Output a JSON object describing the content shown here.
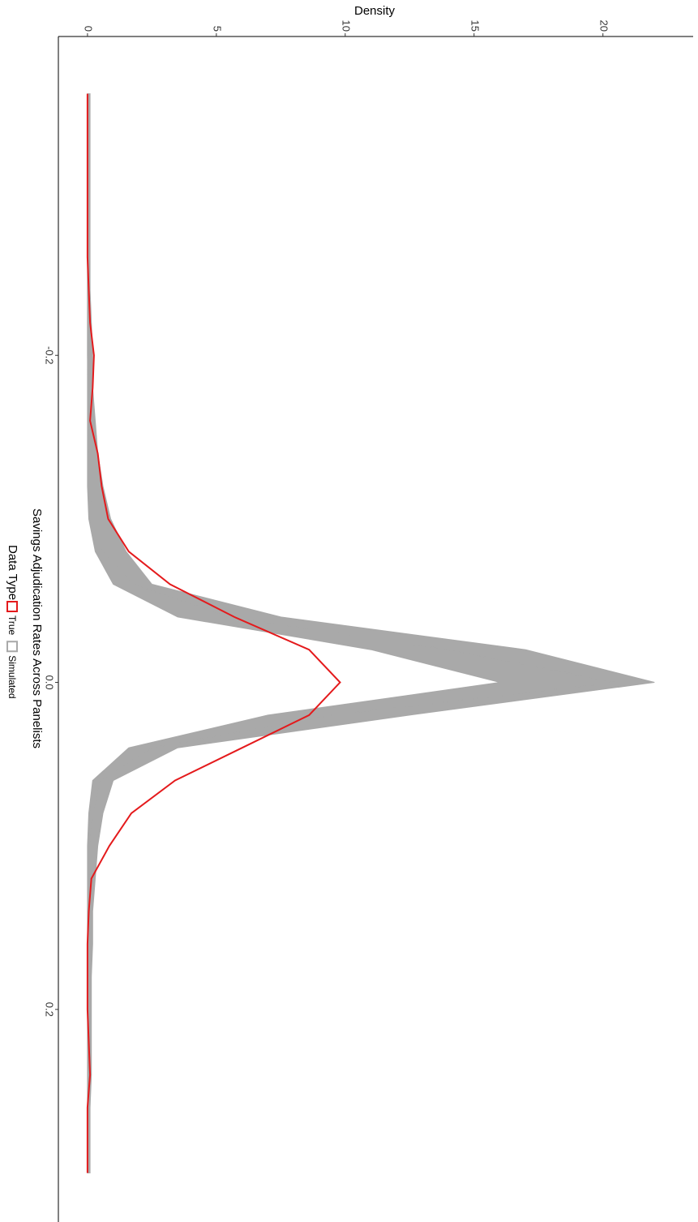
{
  "chart_data": {
    "type": "density",
    "title": "Savings Adjudication Rates Across Panelists",
    "ylabel": "Density",
    "legend_title": "Data Type",
    "x": [
      -0.36,
      -0.34,
      -0.32,
      -0.3,
      -0.28,
      -0.26,
      -0.24,
      -0.22,
      -0.2,
      -0.18,
      -0.16,
      -0.14,
      -0.12,
      -0.1,
      -0.08,
      -0.06,
      -0.04,
      -0.02,
      0.0,
      0.02,
      0.04,
      0.06,
      0.08,
      0.1,
      0.12,
      0.14,
      0.16,
      0.18,
      0.2,
      0.22,
      0.24,
      0.26,
      0.28,
      0.3
    ],
    "series": [
      {
        "name": "True",
        "color": "#e41a1c",
        "values": [
          0,
          0,
          0,
          0,
          0,
          0,
          0.05,
          0.1,
          0.25,
          0.2,
          0.1,
          0.4,
          0.55,
          0.8,
          1.6,
          3.2,
          5.7,
          8.6,
          9.8,
          8.6,
          6.0,
          3.4,
          1.7,
          0.85,
          0.15,
          0.05,
          0,
          0,
          0,
          0.05,
          0.1,
          0,
          0,
          0
        ]
      },
      {
        "name": "Simulated",
        "color": "#a9a9a9",
        "values": [
          0,
          0,
          0,
          0,
          0,
          0,
          0,
          0,
          0,
          0.02,
          0.03,
          0.05,
          0.05,
          0.2,
          0.6,
          1.8,
          5.5,
          14,
          20.5,
          9.5,
          2.5,
          0.5,
          0.2,
          0.1,
          0.05,
          0.05,
          0.03,
          0.02,
          0.02,
          0.02,
          0.02,
          0.02,
          0,
          0
        ],
        "lower": [
          0,
          0,
          0,
          0,
          0,
          0,
          0,
          0,
          0,
          0,
          0,
          0,
          0,
          0.05,
          0.3,
          1.0,
          3.5,
          11,
          16,
          7,
          1.6,
          0.2,
          0.05,
          0,
          0,
          0,
          0,
          0,
          0,
          0,
          0,
          0,
          0,
          0
        ],
        "upper": [
          0.1,
          0.1,
          0.1,
          0.1,
          0.1,
          0.1,
          0.1,
          0.15,
          0.2,
          0.2,
          0.3,
          0.4,
          0.6,
          0.9,
          1.5,
          2.5,
          7.5,
          17,
          22,
          12.5,
          3.5,
          1.0,
          0.6,
          0.4,
          0.3,
          0.2,
          0.2,
          0.15,
          0.15,
          0.15,
          0.15,
          0.1,
          0.1,
          0.1
        ]
      }
    ],
    "xlim": [
      -0.395,
      0.33
    ],
    "xticks": [
      -0.2,
      {
        "value": 0,
        "label": "0.0"
      },
      0.2
    ],
    "ylim": [
      -1.13,
      23.5
    ],
    "yticks": [
      0,
      5,
      10,
      15,
      20
    ],
    "rotated": true
  }
}
